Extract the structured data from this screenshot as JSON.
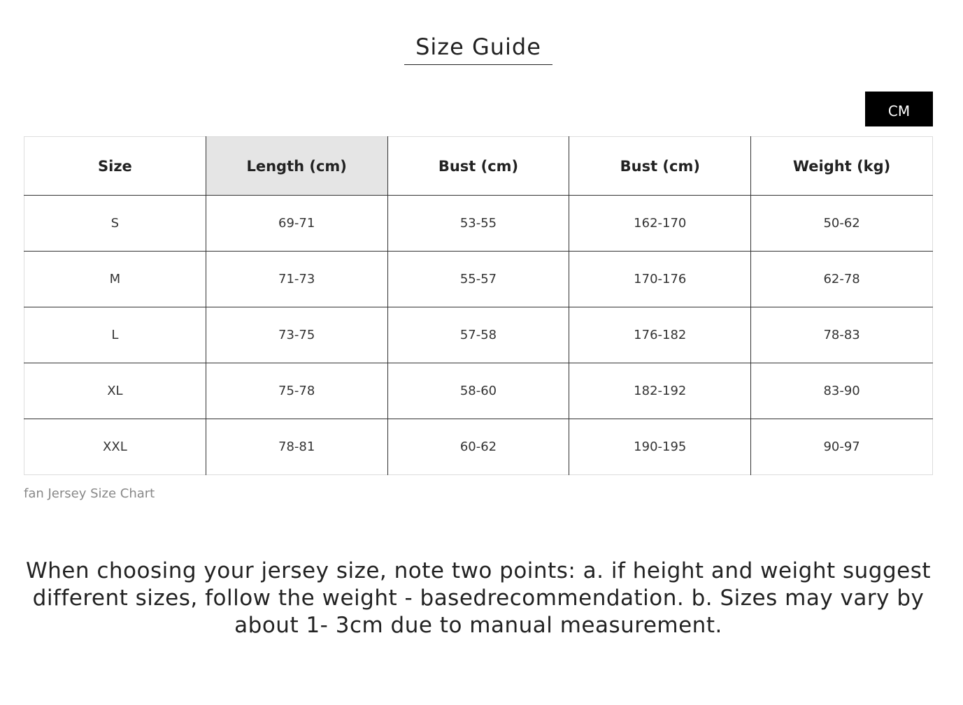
{
  "title": "Size Guide",
  "unit_button": "CM",
  "table": {
    "headers": [
      "Size",
      "Length (cm)",
      "Bust (cm)",
      "Bust (cm)",
      "Weight (kg)"
    ],
    "rows": [
      [
        "S",
        "69-71",
        "53-55",
        "162-170",
        "50-62"
      ],
      [
        "M",
        "71-73",
        "55-57",
        "170-176",
        "62-78"
      ],
      [
        "L",
        "73-75",
        "57-58",
        "176-182",
        "78-83"
      ],
      [
        "XL",
        "75-78",
        "58-60",
        "182-192",
        "83-90"
      ],
      [
        "XXL",
        "78-81",
        "60-62",
        "190-195",
        "90-97"
      ]
    ]
  },
  "caption": "fan Jersey Size Chart",
  "note": "When choosing your jersey size, note two points: a. if height and weight suggest different sizes, follow the weight - basedrecommendation. b. Sizes may vary by about 1- 3cm due to manual measurement."
}
